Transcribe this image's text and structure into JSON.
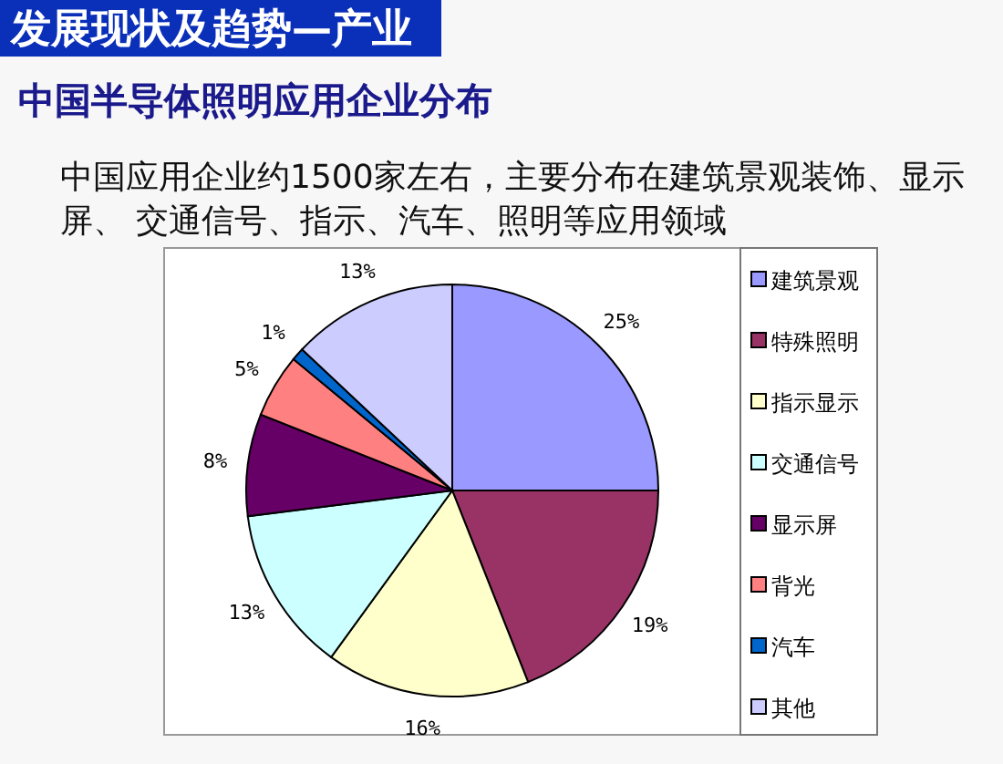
{
  "chart_data": {
    "type": "pie",
    "title": "发展现状及趋势—产业",
    "subtitle": "中国半导体照明应用企业分布",
    "annotations": [
      "中国应用企业约1500家左右，主要分布在建筑景观装饰、显示屏、 交通信号、指示、汽车、照明等应用领域"
    ],
    "categories": [
      "建筑景观",
      "特殊照明",
      "指示显示",
      "交通信号",
      "显示屏",
      "背光",
      "汽车",
      "其他"
    ],
    "values": [
      25,
      19,
      16,
      13,
      8,
      5,
      1,
      13
    ],
    "value_labels": [
      "25%",
      "19%",
      "16%",
      "13%",
      "8%",
      "5%",
      "1%",
      "13%"
    ],
    "colors": [
      "#9999ff",
      "#993366",
      "#ffffcc",
      "#ccffff",
      "#660066",
      "#ff8080",
      "#0066cc",
      "#ccccff"
    ],
    "legend": "right"
  }
}
